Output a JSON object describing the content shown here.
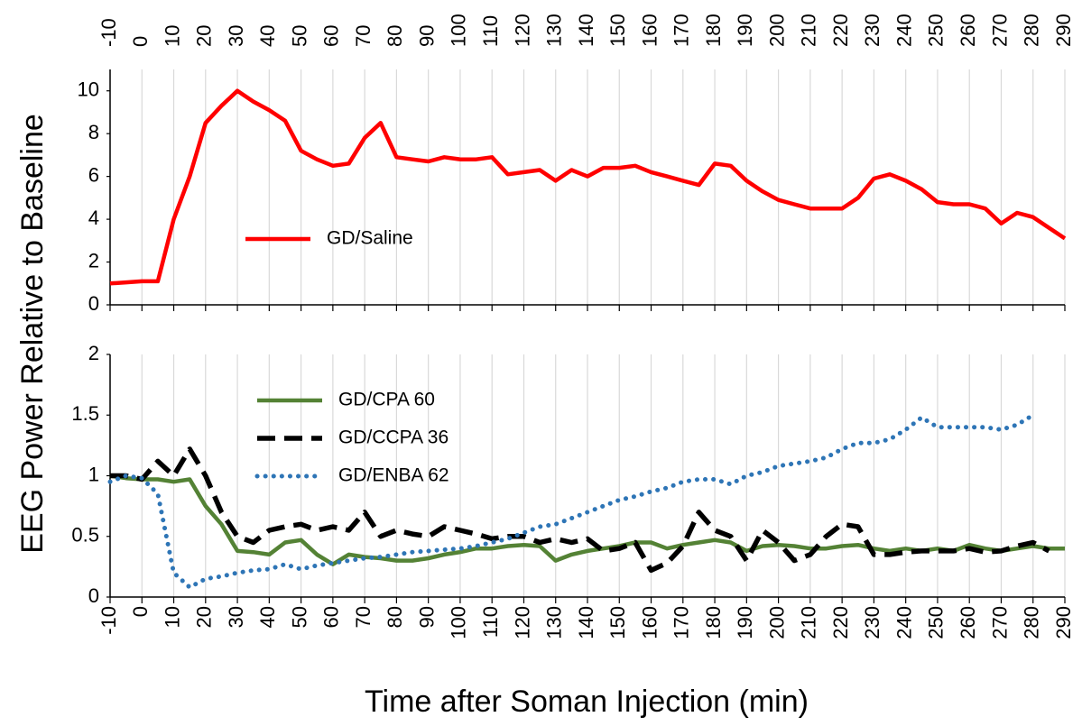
{
  "chart_data": [
    {
      "type": "line",
      "y_label": "EEG Power Relative to Baseline",
      "x": [
        -10,
        -5,
        0,
        5,
        10,
        15,
        20,
        25,
        30,
        35,
        40,
        45,
        50,
        55,
        60,
        65,
        70,
        75,
        80,
        85,
        90,
        95,
        100,
        105,
        110,
        115,
        120,
        125,
        130,
        135,
        140,
        145,
        150,
        155,
        160,
        165,
        170,
        175,
        180,
        185,
        190,
        195,
        200,
        205,
        210,
        215,
        220,
        225,
        230,
        235,
        240,
        245,
        250,
        255,
        260,
        265,
        270,
        275,
        280,
        285,
        290
      ],
      "series": [
        {
          "name": "GD/Saline",
          "color": "#ff0000",
          "values": [
            1.0,
            1.05,
            1.1,
            1.1,
            4.0,
            6.0,
            8.5,
            9.3,
            10.0,
            9.5,
            9.1,
            8.6,
            7.2,
            6.8,
            6.5,
            6.6,
            7.8,
            8.5,
            6.9,
            6.8,
            6.7,
            6.9,
            6.8,
            6.8,
            6.9,
            6.1,
            6.2,
            6.3,
            5.8,
            6.3,
            6.0,
            6.4,
            6.4,
            6.5,
            6.2,
            6.0,
            5.8,
            5.6,
            6.6,
            6.5,
            5.8,
            5.3,
            4.9,
            4.7,
            4.5,
            4.5,
            4.5,
            5.0,
            5.9,
            6.1,
            5.8,
            5.4,
            4.8,
            4.7,
            4.7,
            4.5,
            3.8,
            4.3,
            4.1,
            3.6,
            3.1
          ]
        }
      ],
      "xlim": [
        -10,
        290
      ],
      "xticks": [
        -10,
        0,
        10,
        20,
        30,
        40,
        50,
        60,
        70,
        80,
        90,
        100,
        110,
        120,
        130,
        140,
        150,
        160,
        170,
        180,
        190,
        200,
        210,
        220,
        230,
        240,
        250,
        260,
        270,
        280,
        290
      ],
      "ylim": [
        0,
        11
      ],
      "yticks": [
        0,
        2,
        4,
        6,
        8,
        10
      ],
      "grid": true
    },
    {
      "type": "line",
      "x_label": "Time after Soman Injection (min)",
      "x": [
        -10,
        -5,
        0,
        5,
        10,
        15,
        20,
        25,
        30,
        35,
        40,
        45,
        50,
        55,
        60,
        65,
        70,
        75,
        80,
        85,
        90,
        95,
        100,
        105,
        110,
        115,
        120,
        125,
        130,
        135,
        140,
        145,
        150,
        155,
        160,
        165,
        170,
        175,
        180,
        185,
        190,
        195,
        200,
        205,
        210,
        215,
        220,
        225,
        230,
        235,
        240,
        245,
        250,
        255,
        260,
        265,
        270,
        275,
        280,
        285,
        290
      ],
      "series": [
        {
          "name": "GD/CPA 60",
          "color": "#548235",
          "dash": "solid",
          "values": [
            1.0,
            0.98,
            0.97,
            0.97,
            0.95,
            0.97,
            0.75,
            0.6,
            0.38,
            0.37,
            0.35,
            0.45,
            0.47,
            0.35,
            0.27,
            0.35,
            0.33,
            0.32,
            0.3,
            0.3,
            0.32,
            0.35,
            0.37,
            0.4,
            0.4,
            0.42,
            0.43,
            0.42,
            0.3,
            0.35,
            0.38,
            0.4,
            0.42,
            0.45,
            0.45,
            0.4,
            0.43,
            0.45,
            0.47,
            0.45,
            0.38,
            0.42,
            0.43,
            0.42,
            0.4,
            0.4,
            0.42,
            0.43,
            0.4,
            0.38,
            0.4,
            0.38,
            0.4,
            0.38,
            0.43,
            0.4,
            0.38,
            0.4,
            0.42,
            0.4,
            0.4
          ]
        },
        {
          "name": "GD/CCPA 36",
          "color": "#000000",
          "dash": "dashed",
          "values": [
            1.0,
            1.0,
            0.97,
            1.12,
            1.0,
            1.22,
            1.0,
            0.7,
            0.5,
            0.45,
            0.55,
            0.58,
            0.6,
            0.55,
            0.58,
            0.55,
            0.7,
            0.5,
            0.55,
            0.52,
            0.5,
            0.58,
            0.55,
            0.52,
            0.48,
            0.5,
            0.5,
            0.45,
            0.48,
            0.45,
            0.48,
            0.38,
            0.4,
            0.45,
            0.22,
            0.28,
            0.42,
            0.7,
            0.55,
            0.5,
            0.3,
            0.55,
            0.45,
            0.3,
            0.35,
            0.5,
            0.6,
            0.58,
            0.35,
            0.35,
            0.37,
            0.38,
            0.38,
            0.38,
            0.4,
            0.37,
            0.38,
            0.42,
            0.45,
            0.38,
            null
          ]
        },
        {
          "name": "GD/ENBA 62",
          "color": "#2e75b6",
          "dash": "dotted",
          "values": [
            0.95,
            1.0,
            0.98,
            0.85,
            0.2,
            0.08,
            0.15,
            0.17,
            0.2,
            0.22,
            0.23,
            0.27,
            0.23,
            0.26,
            0.28,
            0.3,
            0.32,
            0.33,
            0.35,
            0.37,
            0.38,
            0.39,
            0.4,
            0.42,
            0.45,
            0.48,
            0.53,
            0.58,
            0.6,
            0.65,
            0.7,
            0.75,
            0.8,
            0.83,
            0.87,
            0.9,
            0.95,
            0.97,
            0.97,
            0.93,
            1.0,
            1.03,
            1.08,
            1.1,
            1.12,
            1.15,
            1.22,
            1.27,
            1.27,
            1.3,
            1.38,
            1.48,
            1.4,
            1.4,
            1.4,
            1.4,
            1.38,
            1.42,
            1.5,
            null,
            null
          ]
        }
      ],
      "xlim": [
        -10,
        290
      ],
      "xticks": [
        -10,
        0,
        10,
        20,
        30,
        40,
        50,
        60,
        70,
        80,
        90,
        100,
        110,
        120,
        130,
        140,
        150,
        160,
        170,
        180,
        190,
        200,
        210,
        220,
        230,
        240,
        250,
        260,
        270,
        280,
        290
      ],
      "ylim": [
        0,
        2
      ],
      "yticks": [
        0,
        0.5,
        1,
        1.5,
        2
      ],
      "grid": true
    }
  ]
}
